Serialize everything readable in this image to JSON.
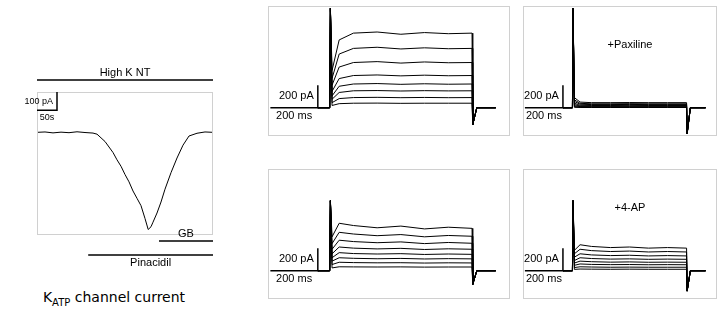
{
  "chart_data": [
    {
      "type": "line",
      "color": "#000000",
      "grid": false,
      "tick_labels": false,
      "xlim": [
        0,
        440
      ],
      "ylim": [
        -560,
        220
      ],
      "x": [
        0,
        20,
        40,
        60,
        80,
        100,
        120,
        140,
        150,
        160,
        170,
        180,
        190,
        200,
        210,
        220,
        230,
        240,
        250,
        260,
        270,
        278,
        285,
        290,
        300,
        310,
        320,
        335,
        350,
        365,
        380,
        400,
        420,
        440
      ],
      "series": [
        {
          "values": [
            0,
            2,
            -3,
            1,
            -2,
            3,
            -1,
            -4,
            -10,
            -30,
            -50,
            -80,
            -110,
            -150,
            -185,
            -230,
            -270,
            -320,
            -360,
            -400,
            -470,
            -530,
            -515,
            -490,
            -440,
            -380,
            -310,
            -220,
            -140,
            -70,
            -20,
            -5,
            2,
            0
          ]
        }
      ],
      "scale_bar": {
        "x": 50,
        "x_label": "50s",
        "y": 100,
        "y_label": "100 pA"
      },
      "drug_bars": [
        {
          "label": "High K NT",
          "start": 0,
          "end": 440
        },
        {
          "label": "GB",
          "start": 305,
          "end": 440
        },
        {
          "label": "Pinacidil",
          "start": 128,
          "end": 440
        }
      ],
      "caption": {
        "main": "K",
        "sub": "ATP",
        "tail": " channel current"
      }
    },
    {
      "type": "line",
      "color": "#000000",
      "grid": false,
      "tick_labels": false,
      "xlim": [
        -260,
        760
      ],
      "ylim": [
        -250,
        900
      ],
      "x": [
        -50,
        0,
        3,
        10,
        40,
        100,
        200,
        300,
        400,
        500,
        600,
        603,
        620,
        700
      ],
      "series": [
        {
          "values": [
            0,
            0,
            880,
            330,
            600,
            660,
            670,
            650,
            665,
            655,
            660,
            -150,
            0,
            0
          ]
        },
        {
          "values": [
            0,
            0,
            880,
            260,
            475,
            525,
            535,
            520,
            530,
            522,
            525,
            -150,
            0,
            0
          ]
        },
        {
          "values": [
            0,
            0,
            880,
            200,
            360,
            400,
            408,
            395,
            405,
            398,
            400,
            -150,
            0,
            0
          ]
        },
        {
          "values": [
            0,
            0,
            880,
            145,
            258,
            285,
            290,
            282,
            288,
            283,
            285,
            -150,
            0,
            0
          ]
        },
        {
          "values": [
            0,
            0,
            880,
            105,
            190,
            210,
            214,
            207,
            212,
            208,
            210,
            -150,
            0,
            0
          ]
        },
        {
          "values": [
            0,
            0,
            880,
            75,
            135,
            150,
            152,
            148,
            151,
            149,
            150,
            -150,
            0,
            0
          ]
        },
        {
          "values": [
            0,
            0,
            880,
            45,
            81,
            90,
            92,
            89,
            91,
            89,
            90,
            -150,
            0,
            0
          ]
        },
        {
          "values": [
            0,
            0,
            880,
            20,
            36,
            40,
            41,
            39,
            40,
            40,
            40,
            -150,
            0,
            0
          ]
        }
      ],
      "scale_bar": {
        "x": 200,
        "x_label": "200 ms",
        "y": 200,
        "y_label": "200 pA"
      }
    },
    {
      "type": "line",
      "color": "#000000",
      "grid": false,
      "tick_labels": false,
      "xlim": [
        -260,
        760
      ],
      "ylim": [
        -250,
        900
      ],
      "x": [
        -50,
        0,
        3,
        10,
        40,
        100,
        200,
        300,
        400,
        500,
        600,
        603,
        620,
        700
      ],
      "series": [
        {
          "values": [
            0,
            0,
            880,
            90,
            50,
            45,
            45,
            46,
            45,
            45,
            45,
            -230,
            0,
            0
          ]
        },
        {
          "values": [
            0,
            0,
            880,
            70,
            39,
            35,
            35,
            36,
            35,
            35,
            35,
            -230,
            0,
            0
          ]
        },
        {
          "values": [
            0,
            0,
            880,
            56,
            31,
            28,
            28,
            29,
            28,
            28,
            28,
            -230,
            0,
            0
          ]
        },
        {
          "values": [
            0,
            0,
            880,
            40,
            22,
            20,
            20,
            21,
            20,
            20,
            20,
            -230,
            0,
            0
          ]
        },
        {
          "values": [
            0,
            0,
            880,
            28,
            15,
            14,
            14,
            14,
            14,
            14,
            14,
            -230,
            0,
            0
          ]
        },
        {
          "values": [
            0,
            0,
            880,
            18,
            10,
            9,
            9,
            9,
            9,
            9,
            9,
            -230,
            0,
            0
          ]
        },
        {
          "values": [
            0,
            0,
            880,
            10,
            6,
            5,
            5,
            5,
            5,
            5,
            5,
            -230,
            0,
            0
          ]
        },
        {
          "values": [
            0,
            0,
            880,
            4,
            2,
            2,
            2,
            2,
            2,
            2,
            2,
            -230,
            0,
            0
          ]
        }
      ],
      "scale_bar": {
        "x": 200,
        "x_label": "200 ms",
        "y": 200,
        "y_label": "200 pA"
      },
      "annotation": "+Paxiline"
    },
    {
      "type": "line",
      "color": "#000000",
      "grid": false,
      "tick_labels": false,
      "xlim": [
        -260,
        760
      ],
      "ylim": [
        -250,
        900
      ],
      "x": [
        -50,
        0,
        3,
        10,
        40,
        100,
        200,
        300,
        400,
        500,
        600,
        603,
        620,
        700
      ],
      "series": [
        {
          "values": [
            0,
            0,
            620,
            300,
            420,
            400,
            380,
            395,
            370,
            385,
            375,
            -120,
            0,
            0
          ]
        },
        {
          "values": [
            0,
            0,
            620,
            240,
            340,
            325,
            310,
            320,
            300,
            312,
            305,
            -120,
            0,
            0
          ]
        },
        {
          "values": [
            0,
            0,
            620,
            190,
            270,
            258,
            248,
            255,
            240,
            250,
            243,
            -120,
            0,
            0
          ]
        },
        {
          "values": [
            0,
            0,
            620,
            150,
            210,
            200,
            193,
            198,
            188,
            194,
            190,
            -120,
            0,
            0
          ]
        },
        {
          "values": [
            0,
            0,
            620,
            115,
            160,
            152,
            148,
            151,
            144,
            148,
            145,
            -120,
            0,
            0
          ]
        },
        {
          "values": [
            0,
            0,
            620,
            85,
            115,
            110,
            106,
            109,
            104,
            107,
            105,
            -120,
            0,
            0
          ]
        },
        {
          "values": [
            0,
            0,
            620,
            55,
            75,
            72,
            70,
            71,
            68,
            70,
            69,
            -120,
            0,
            0
          ]
        },
        {
          "values": [
            0,
            0,
            620,
            25,
            35,
            34,
            33,
            34,
            32,
            33,
            33,
            -120,
            0,
            0
          ]
        }
      ],
      "scale_bar": {
        "x": 200,
        "x_label": "200 ms",
        "y": 200,
        "y_label": "200 pA"
      }
    },
    {
      "type": "line",
      "color": "#000000",
      "grid": false,
      "tick_labels": false,
      "xlim": [
        -260,
        760
      ],
      "ylim": [
        -250,
        900
      ],
      "x": [
        -50,
        0,
        3,
        10,
        40,
        100,
        200,
        300,
        400,
        500,
        600,
        603,
        620,
        700
      ],
      "series": [
        {
          "values": [
            0,
            0,
            620,
            180,
            230,
            215,
            205,
            210,
            200,
            205,
            200,
            -180,
            0,
            0
          ]
        },
        {
          "values": [
            0,
            0,
            620,
            150,
            190,
            178,
            170,
            174,
            166,
            170,
            166,
            -180,
            0,
            0
          ]
        },
        {
          "values": [
            0,
            0,
            620,
            120,
            150,
            140,
            134,
            137,
            131,
            134,
            131,
            -180,
            0,
            0
          ]
        },
        {
          "values": [
            0,
            0,
            620,
            90,
            115,
            108,
            103,
            105,
            101,
            103,
            101,
            -180,
            0,
            0
          ]
        },
        {
          "values": [
            0,
            0,
            620,
            68,
            85,
            80,
            76,
            78,
            75,
            76,
            75,
            -180,
            0,
            0
          ]
        },
        {
          "values": [
            0,
            0,
            620,
            48,
            60,
            56,
            54,
            55,
            53,
            54,
            53,
            -180,
            0,
            0
          ]
        },
        {
          "values": [
            0,
            0,
            620,
            28,
            35,
            33,
            31,
            32,
            31,
            31,
            31,
            -180,
            0,
            0
          ]
        },
        {
          "values": [
            0,
            0,
            620,
            12,
            15,
            14,
            13,
            14,
            13,
            13,
            13,
            -180,
            0,
            0
          ]
        }
      ],
      "scale_bar": {
        "x": 200,
        "x_label": "200 ms",
        "y": 200,
        "y_label": "200 pA"
      },
      "annotation": "+4-AP"
    }
  ]
}
